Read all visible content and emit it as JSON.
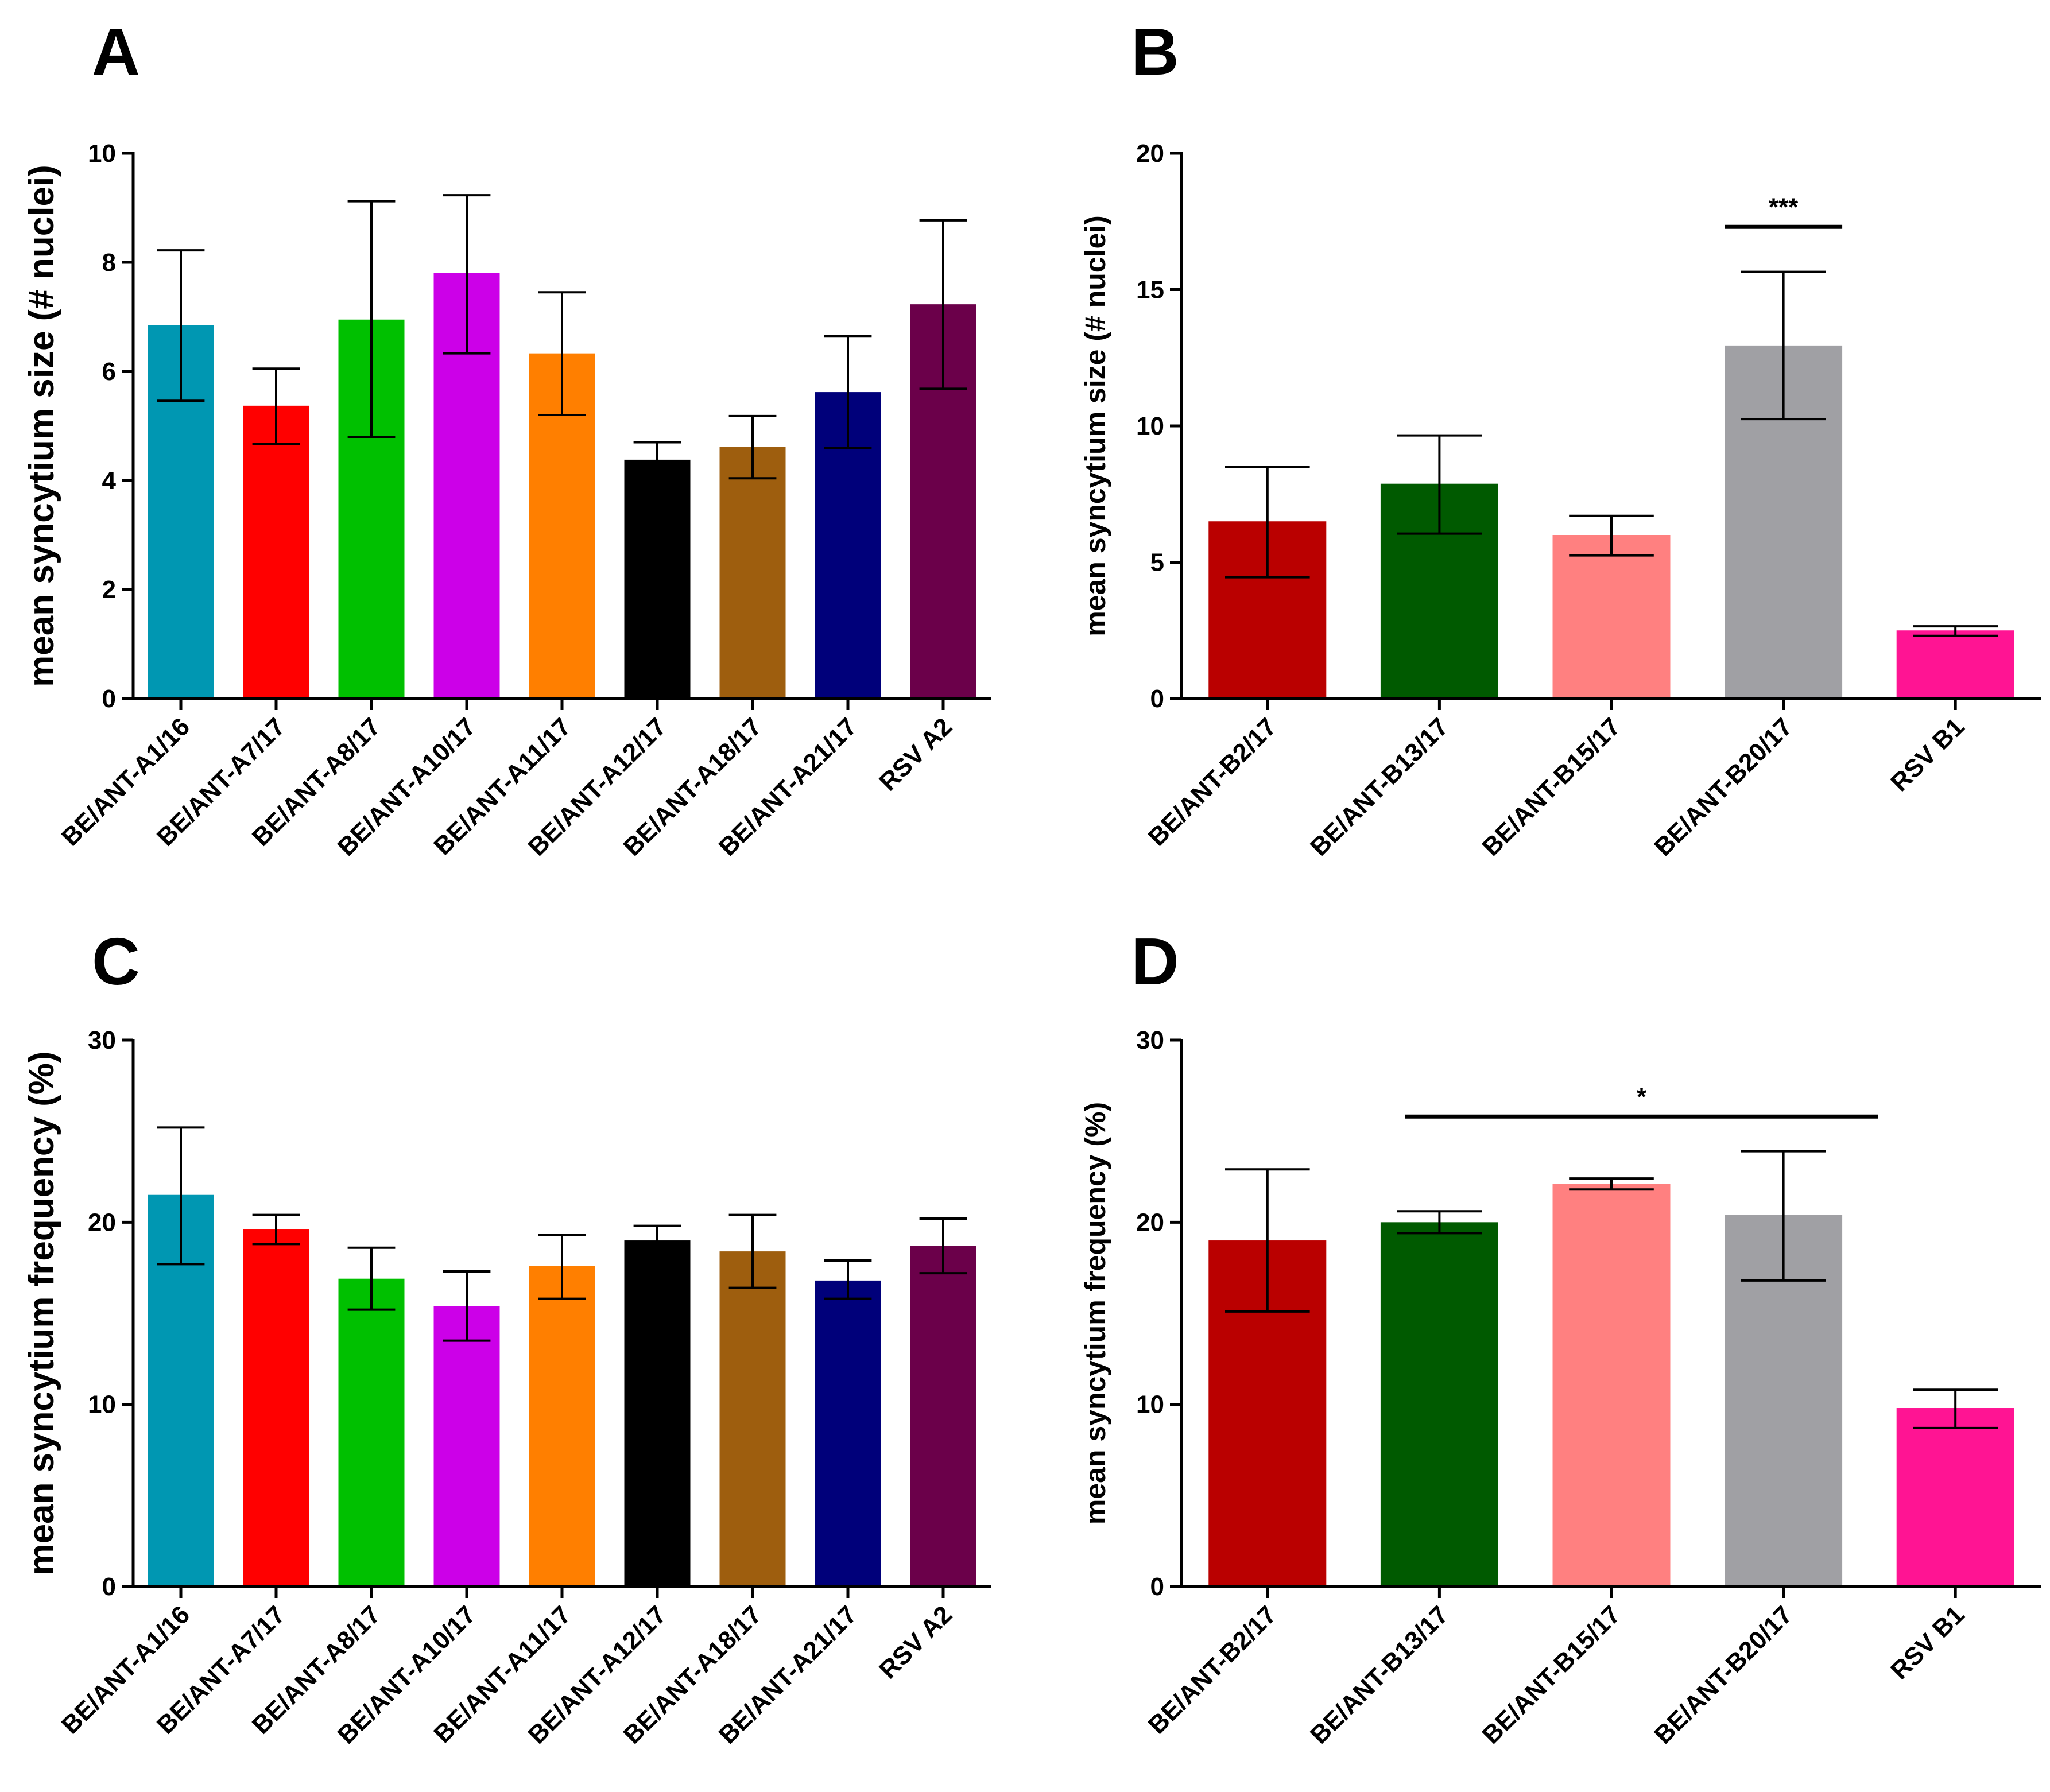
{
  "colors": {
    "teal": "#0097b2",
    "red": "#ff0000",
    "green": "#00c000",
    "magenta": "#cc00e8",
    "orange": "#ff7f00",
    "black": "#000000",
    "brown": "#9e5e0e",
    "navy": "#00007a",
    "plum": "#6b004a",
    "darkred": "#ba0000",
    "darkgreen": "#005a00",
    "pink": "#ff8080",
    "gray": "#a0a0a4",
    "hotpink": "#ff1493"
  },
  "chart_data": [
    {
      "panel": "A",
      "type": "bar",
      "categories": [
        "BE/ANT-A1/16",
        "BE/ANT-A7/17",
        "BE/ANT-A8/17",
        "BE/ANT-A10/17",
        "BE/ANT-A11/17",
        "BE/ANT-A12/17",
        "BE/ANT-A18/17",
        "BE/ANT-A21/17",
        "RSV A2"
      ],
      "values": [
        6.85,
        5.37,
        6.95,
        7.8,
        6.33,
        4.38,
        4.62,
        5.62,
        7.23
      ],
      "error_low": [
        5.46,
        4.67,
        4.8,
        6.33,
        5.2,
        4.05,
        4.04,
        4.6,
        5.68
      ],
      "error_high": [
        8.22,
        6.05,
        9.12,
        9.23,
        7.45,
        4.7,
        5.18,
        6.65,
        8.77
      ],
      "bar_colors": [
        "teal",
        "red",
        "green",
        "magenta",
        "orange",
        "black",
        "brown",
        "navy",
        "plum"
      ],
      "title": "",
      "xlabel": "",
      "ylabel": "mean syncytium size (# nuclei)",
      "ylim": [
        0,
        10
      ],
      "yticks": [
        0,
        2,
        4,
        6,
        8,
        10
      ],
      "significance": []
    },
    {
      "panel": "B",
      "type": "bar",
      "categories": [
        "BE/ANT-B2/17",
        "BE/ANT-B13/17",
        "BE/ANT-B15/17",
        "BE/ANT-B20/17",
        "RSV B1"
      ],
      "values": [
        6.5,
        7.88,
        6.0,
        12.95,
        2.5
      ],
      "error_low": [
        4.45,
        6.05,
        5.25,
        10.25,
        2.3
      ],
      "error_high": [
        8.5,
        9.65,
        6.7,
        15.65,
        2.65
      ],
      "bar_colors": [
        "darkred",
        "darkgreen",
        "pink",
        "gray",
        "hotpink"
      ],
      "title": "",
      "xlabel": "",
      "ylabel": "mean syncytium size (# nuclei)",
      "ylim": [
        0,
        20
      ],
      "yticks": [
        0,
        5,
        10,
        15,
        20
      ],
      "significance": [
        {
          "label": "***",
          "from_category": 3,
          "to_category": 3,
          "y": 17.3
        }
      ]
    },
    {
      "panel": "C",
      "type": "bar",
      "categories": [
        "BE/ANT-A1/16",
        "BE/ANT-A7/17",
        "BE/ANT-A8/17",
        "BE/ANT-A10/17",
        "BE/ANT-A11/17",
        "BE/ANT-A12/17",
        "BE/ANT-A18/17",
        "BE/ANT-A21/17",
        "RSV A2"
      ],
      "values": [
        21.5,
        19.6,
        16.9,
        15.4,
        17.6,
        19.0,
        18.4,
        16.8,
        18.7
      ],
      "error_low": [
        17.7,
        18.8,
        15.2,
        13.5,
        15.8,
        18.3,
        16.4,
        15.8,
        17.2
      ],
      "error_high": [
        25.2,
        20.4,
        18.6,
        17.3,
        19.3,
        19.8,
        20.4,
        17.9,
        20.2
      ],
      "bar_colors": [
        "teal",
        "red",
        "green",
        "magenta",
        "orange",
        "black",
        "brown",
        "navy",
        "plum"
      ],
      "title": "",
      "xlabel": "",
      "ylabel": "mean syncytium frequency (%)",
      "ylim": [
        0,
        30
      ],
      "yticks": [
        0,
        10,
        20,
        30
      ],
      "significance": []
    },
    {
      "panel": "D",
      "type": "bar",
      "categories": [
        "BE/ANT-B2/17",
        "BE/ANT-B13/17",
        "BE/ANT-B15/17",
        "BE/ANT-B20/17",
        "RSV B1"
      ],
      "values": [
        19.0,
        20.0,
        22.1,
        20.4,
        9.8
      ],
      "error_low": [
        15.1,
        19.4,
        21.8,
        16.8,
        8.7
      ],
      "error_high": [
        22.9,
        20.6,
        22.4,
        23.9,
        10.8
      ],
      "bar_colors": [
        "darkred",
        "darkgreen",
        "pink",
        "gray",
        "hotpink"
      ],
      "title": "",
      "xlabel": "",
      "ylabel": "mean syncytium frequency (%)",
      "ylim": [
        0,
        30
      ],
      "yticks": [
        0,
        10,
        20,
        30
      ],
      "significance": [
        {
          "label": "*",
          "from_category": 0.8,
          "to_category": 3.55,
          "y": 25.8
        }
      ]
    }
  ]
}
